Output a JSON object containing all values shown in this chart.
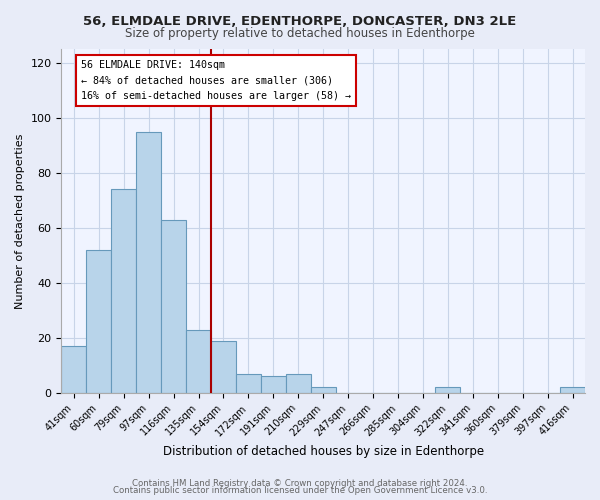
{
  "title1": "56, ELMDALE DRIVE, EDENTHORPE, DONCASTER, DN3 2LE",
  "title2": "Size of property relative to detached houses in Edenthorpe",
  "xlabel": "Distribution of detached houses by size in Edenthorpe",
  "ylabel": "Number of detached properties",
  "bar_labels": [
    "41sqm",
    "60sqm",
    "79sqm",
    "97sqm",
    "116sqm",
    "135sqm",
    "154sqm",
    "172sqm",
    "191sqm",
    "210sqm",
    "229sqm",
    "247sqm",
    "266sqm",
    "285sqm",
    "304sqm",
    "322sqm",
    "341sqm",
    "360sqm",
    "379sqm",
    "397sqm",
    "416sqm"
  ],
  "bar_values": [
    17,
    52,
    74,
    95,
    63,
    23,
    19,
    7,
    6,
    7,
    2,
    0,
    0,
    0,
    0,
    2,
    0,
    0,
    0,
    0,
    2
  ],
  "bar_color": "#b8d4ea",
  "bar_edge_color": "#6699bb",
  "vline_color": "#aa0000",
  "annotation_line1": "56 ELMDALE DRIVE: 140sqm",
  "annotation_line2": "← 84% of detached houses are smaller (306)",
  "annotation_line3": "16% of semi-detached houses are larger (58) →",
  "ylim": [
    0,
    125
  ],
  "yticks": [
    0,
    20,
    40,
    60,
    80,
    100,
    120
  ],
  "footer1": "Contains HM Land Registry data © Crown copyright and database right 2024.",
  "footer2": "Contains public sector information licensed under the Open Government Licence v3.0.",
  "bg_color": "#e8ecf8",
  "plot_bg_color": "#f0f4ff"
}
